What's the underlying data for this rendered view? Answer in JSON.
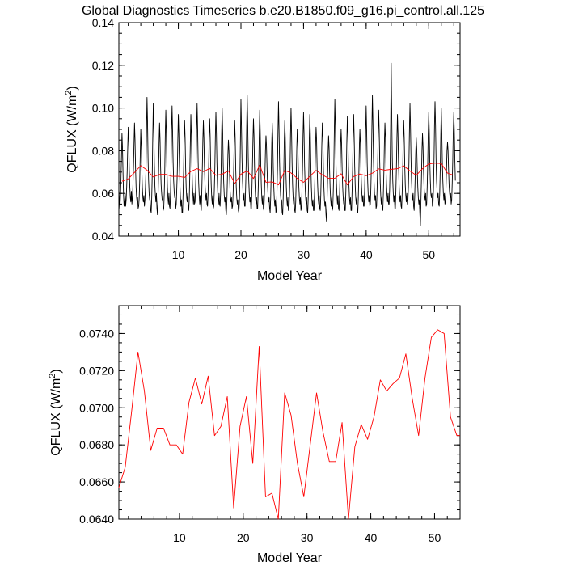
{
  "title": "Global Diagnostics Timeseries b.e20.B1850.f09_g16.pi_control.all.125",
  "colors": {
    "monthly": "#000000",
    "annual": "#ff0000",
    "axis": "#000000"
  },
  "charts": [
    {
      "id": "top",
      "xlabel": "Model Year",
      "ylabel_main": "QFLUX (W/m",
      "ylabel_sup": "2",
      "ylabel_close": ")",
      "xticks": [
        "10",
        "20",
        "30",
        "40",
        "50"
      ],
      "yticks": [
        "0.04",
        "0.06",
        "0.08",
        "0.10",
        "0.12",
        "0.14"
      ]
    },
    {
      "id": "bottom",
      "xlabel": "Model Year",
      "ylabel_main": "QFLUX (W/m",
      "ylabel_sup": "2",
      "ylabel_close": ")",
      "xticks": [
        "10",
        "20",
        "30",
        "40",
        "50"
      ],
      "yticks": [
        "0.0640",
        "0.0660",
        "0.0680",
        "0.0700",
        "0.0720",
        "0.0740"
      ]
    }
  ],
  "chart_data": [
    {
      "type": "line",
      "xlim": [
        0.5,
        55.0
      ],
      "ylim": [
        0.04,
        0.14
      ],
      "xticks": [
        10,
        20,
        30,
        40,
        50
      ],
      "yticks": [
        0.04,
        0.06,
        0.08,
        0.1,
        0.12,
        0.14
      ],
      "minor_x_step": 2,
      "minor_y_step": 0.005,
      "series": [
        {
          "color": "#000000",
          "start_x": 0.5,
          "step": 0.08333,
          "values": [
            0.062,
            0.057,
            0.053,
            0.058,
            0.066,
            0.077,
            0.088,
            0.081,
            0.069,
            0.059,
            0.054,
            0.056,
            0.06,
            0.054,
            0.057,
            0.063,
            0.071,
            0.082,
            0.091,
            0.084,
            0.071,
            0.063,
            0.058,
            0.056,
            0.061,
            0.055,
            0.058,
            0.064,
            0.072,
            0.083,
            0.093,
            0.085,
            0.072,
            0.063,
            0.058,
            0.056,
            0.058,
            0.053,
            0.054,
            0.058,
            0.066,
            0.078,
            0.09,
            0.082,
            0.071,
            0.063,
            0.058,
            0.056,
            0.059,
            0.054,
            0.057,
            0.063,
            0.071,
            0.089,
            0.105,
            0.093,
            0.076,
            0.066,
            0.06,
            0.057,
            0.057,
            0.052,
            0.051,
            0.058,
            0.069,
            0.087,
            0.102,
            0.089,
            0.074,
            0.064,
            0.059,
            0.056,
            0.06,
            0.053,
            0.05,
            0.057,
            0.068,
            0.083,
            0.093,
            0.085,
            0.072,
            0.064,
            0.06,
            0.057,
            0.057,
            0.052,
            0.053,
            0.06,
            0.071,
            0.088,
            0.099,
            0.088,
            0.073,
            0.063,
            0.058,
            0.055,
            0.06,
            0.054,
            0.053,
            0.06,
            0.072,
            0.09,
            0.101,
            0.089,
            0.075,
            0.066,
            0.061,
            0.058,
            0.058,
            0.053,
            0.055,
            0.062,
            0.07,
            0.085,
            0.097,
            0.088,
            0.074,
            0.064,
            0.058,
            0.054,
            0.057,
            0.051,
            0.051,
            0.059,
            0.07,
            0.085,
            0.094,
            0.086,
            0.072,
            0.063,
            0.058,
            0.056,
            0.06,
            0.054,
            0.052,
            0.058,
            0.069,
            0.084,
            0.097,
            0.087,
            0.073,
            0.064,
            0.059,
            0.055,
            0.06,
            0.055,
            0.056,
            0.062,
            0.072,
            0.09,
            0.102,
            0.09,
            0.075,
            0.065,
            0.059,
            0.055,
            0.059,
            0.054,
            0.052,
            0.061,
            0.072,
            0.085,
            0.094,
            0.086,
            0.073,
            0.065,
            0.06,
            0.057,
            0.06,
            0.055,
            0.054,
            0.06,
            0.071,
            0.086,
            0.095,
            0.087,
            0.073,
            0.064,
            0.058,
            0.055,
            0.059,
            0.053,
            0.054,
            0.062,
            0.072,
            0.087,
            0.098,
            0.088,
            0.074,
            0.064,
            0.058,
            0.055,
            0.06,
            0.055,
            0.054,
            0.06,
            0.071,
            0.088,
            0.1,
            0.089,
            0.074,
            0.065,
            0.059,
            0.056,
            0.058,
            0.052,
            0.05,
            0.056,
            0.066,
            0.078,
            0.085,
            0.08,
            0.07,
            0.062,
            0.058,
            0.056,
            0.058,
            0.053,
            0.054,
            0.06,
            0.07,
            0.083,
            0.094,
            0.086,
            0.072,
            0.063,
            0.058,
            0.055,
            0.057,
            0.052,
            0.051,
            0.056,
            0.067,
            0.085,
            0.104,
            0.091,
            0.076,
            0.066,
            0.06,
            0.057,
            0.06,
            0.054,
            0.054,
            0.063,
            0.074,
            0.091,
            0.106,
            0.093,
            0.077,
            0.066,
            0.06,
            0.056,
            0.058,
            0.053,
            0.053,
            0.061,
            0.072,
            0.085,
            0.095,
            0.087,
            0.073,
            0.064,
            0.058,
            0.055,
            0.058,
            0.053,
            0.053,
            0.061,
            0.071,
            0.086,
            0.099,
            0.089,
            0.074,
            0.064,
            0.058,
            0.055,
            0.059,
            0.053,
            0.052,
            0.059,
            0.069,
            0.08,
            0.087,
            0.082,
            0.072,
            0.064,
            0.059,
            0.056,
            0.058,
            0.053,
            0.051,
            0.058,
            0.069,
            0.083,
            0.093,
            0.086,
            0.072,
            0.063,
            0.057,
            0.054,
            0.057,
            0.051,
            0.052,
            0.06,
            0.071,
            0.089,
            0.103,
            0.09,
            0.075,
            0.065,
            0.059,
            0.056,
            0.057,
            0.051,
            0.05,
            0.058,
            0.069,
            0.084,
            0.094,
            0.086,
            0.072,
            0.063,
            0.057,
            0.054,
            0.058,
            0.052,
            0.052,
            0.059,
            0.07,
            0.087,
            0.1,
            0.089,
            0.074,
            0.064,
            0.058,
            0.055,
            0.058,
            0.052,
            0.051,
            0.056,
            0.067,
            0.081,
            0.09,
            0.083,
            0.071,
            0.063,
            0.058,
            0.055,
            0.058,
            0.052,
            0.053,
            0.061,
            0.071,
            0.087,
            0.098,
            0.088,
            0.073,
            0.064,
            0.058,
            0.055,
            0.058,
            0.052,
            0.051,
            0.058,
            0.069,
            0.085,
            0.097,
            0.088,
            0.073,
            0.063,
            0.057,
            0.054,
            0.057,
            0.052,
            0.052,
            0.06,
            0.07,
            0.082,
            0.091,
            0.085,
            0.072,
            0.064,
            0.058,
            0.055,
            0.059,
            0.053,
            0.052,
            0.059,
            0.07,
            0.083,
            0.093,
            0.086,
            0.072,
            0.063,
            0.057,
            0.054,
            0.056,
            0.05,
            0.047,
            0.056,
            0.066,
            0.079,
            0.087,
            0.081,
            0.07,
            0.062,
            0.057,
            0.054,
            0.058,
            0.052,
            0.053,
            0.061,
            0.072,
            0.09,
            0.104,
            0.091,
            0.076,
            0.065,
            0.059,
            0.055,
            0.059,
            0.053,
            0.052,
            0.059,
            0.069,
            0.082,
            0.09,
            0.083,
            0.071,
            0.063,
            0.058,
            0.055,
            0.058,
            0.052,
            0.052,
            0.06,
            0.07,
            0.085,
            0.096,
            0.087,
            0.073,
            0.064,
            0.058,
            0.055,
            0.058,
            0.052,
            0.052,
            0.061,
            0.071,
            0.086,
            0.097,
            0.087,
            0.073,
            0.064,
            0.058,
            0.055,
            0.058,
            0.052,
            0.051,
            0.058,
            0.069,
            0.082,
            0.09,
            0.083,
            0.071,
            0.064,
            0.059,
            0.056,
            0.059,
            0.054,
            0.054,
            0.061,
            0.072,
            0.088,
            0.101,
            0.089,
            0.074,
            0.065,
            0.059,
            0.056,
            0.059,
            0.054,
            0.055,
            0.062,
            0.073,
            0.091,
            0.106,
            0.093,
            0.077,
            0.066,
            0.06,
            0.057,
            0.059,
            0.053,
            0.054,
            0.062,
            0.073,
            0.087,
            0.099,
            0.09,
            0.075,
            0.065,
            0.059,
            0.055,
            0.058,
            0.053,
            0.052,
            0.06,
            0.07,
            0.084,
            0.093,
            0.086,
            0.072,
            0.064,
            0.059,
            0.056,
            0.06,
            0.055,
            0.055,
            0.062,
            0.073,
            0.093,
            0.121,
            0.098,
            0.078,
            0.066,
            0.06,
            0.056,
            0.059,
            0.053,
            0.053,
            0.061,
            0.072,
            0.086,
            0.097,
            0.088,
            0.074,
            0.065,
            0.059,
            0.056,
            0.059,
            0.054,
            0.053,
            0.06,
            0.07,
            0.085,
            0.094,
            0.086,
            0.073,
            0.064,
            0.059,
            0.056,
            0.06,
            0.055,
            0.056,
            0.063,
            0.074,
            0.09,
            0.102,
            0.091,
            0.076,
            0.066,
            0.06,
            0.057,
            0.06,
            0.054,
            0.052,
            0.058,
            0.068,
            0.079,
            0.086,
            0.081,
            0.071,
            0.063,
            0.058,
            0.055,
            0.057,
            0.05,
            0.045,
            0.056,
            0.067,
            0.08,
            0.088,
            0.082,
            0.071,
            0.063,
            0.059,
            0.057,
            0.06,
            0.054,
            0.055,
            0.063,
            0.074,
            0.088,
            0.098,
            0.089,
            0.075,
            0.066,
            0.06,
            0.058,
            0.06,
            0.054,
            0.054,
            0.062,
            0.074,
            0.092,
            0.103,
            0.092,
            0.076,
            0.066,
            0.061,
            0.058,
            0.06,
            0.055,
            0.054,
            0.06,
            0.071,
            0.087,
            0.1,
            0.089,
            0.075,
            0.066,
            0.06,
            0.057,
            0.06,
            0.055,
            0.056,
            0.062,
            0.071,
            0.08,
            0.084,
            0.08,
            0.071,
            0.064,
            0.06,
            0.058,
            0.06,
            0.055,
            0.057,
            0.065,
            0.076,
            0.089,
            0.098,
            0.089,
            0.076,
            0.066
          ]
        },
        {
          "color": "#ff0000",
          "x": [
            1,
            2,
            3,
            4,
            5,
            6,
            7,
            8,
            9,
            10,
            11,
            12,
            13,
            14,
            15,
            16,
            17,
            18,
            19,
            20,
            21,
            22,
            23,
            24,
            25,
            26,
            27,
            28,
            29,
            30,
            31,
            32,
            33,
            34,
            35,
            36,
            37,
            38,
            39,
            40,
            41,
            42,
            43,
            44,
            45,
            46,
            47,
            48,
            49,
            50,
            51,
            52,
            53,
            54
          ],
          "values": [
            0.0657,
            0.0668,
            0.0698,
            0.073,
            0.0709,
            0.0677,
            0.0689,
            0.0689,
            0.068,
            0.068,
            0.0675,
            0.0703,
            0.0716,
            0.0702,
            0.0717,
            0.0685,
            0.069,
            0.0706,
            0.0646,
            0.069,
            0.0706,
            0.067,
            0.0733,
            0.0652,
            0.0654,
            0.064,
            0.0708,
            0.0696,
            0.067,
            0.0652,
            0.068,
            0.0708,
            0.0687,
            0.0671,
            0.0671,
            0.0692,
            0.064,
            0.0679,
            0.0691,
            0.0683,
            0.0695,
            0.0715,
            0.0709,
            0.0713,
            0.0716,
            0.0729,
            0.0705,
            0.0685,
            0.0716,
            0.0738,
            0.0742,
            0.074,
            0.0695,
            0.0685
          ]
        }
      ]
    },
    {
      "type": "line",
      "xlim": [
        0.5,
        54.0
      ],
      "ylim": [
        0.064,
        0.0755
      ],
      "xticks": [
        10,
        20,
        30,
        40,
        50
      ],
      "yticks": [
        0.064,
        0.066,
        0.068,
        0.07,
        0.072,
        0.074
      ],
      "minor_x_step": 2,
      "minor_y_step": 0.0005,
      "series": [
        {
          "color": "#ff0000",
          "x": [
            0.5,
            1.5,
            2.5,
            3.5,
            4.5,
            5.5,
            6.5,
            7.5,
            8.5,
            9.5,
            10.5,
            11.5,
            12.5,
            13.5,
            14.5,
            15.5,
            16.5,
            17.5,
            18.5,
            19.5,
            20.5,
            21.5,
            22.5,
            23.5,
            24.5,
            25.5,
            26.5,
            27.5,
            28.5,
            29.5,
            30.5,
            31.5,
            32.5,
            33.5,
            34.5,
            35.5,
            36.5,
            37.5,
            38.5,
            39.5,
            40.5,
            41.5,
            42.5,
            43.5,
            44.5,
            45.5,
            46.5,
            47.5,
            48.5,
            49.5,
            50.5,
            51.5,
            52.5,
            53.5,
            54.0
          ],
          "values": [
            0.0657,
            0.0668,
            0.0698,
            0.073,
            0.0709,
            0.0677,
            0.0689,
            0.0689,
            0.068,
            0.068,
            0.0675,
            0.0703,
            0.0716,
            0.0702,
            0.0717,
            0.0685,
            0.069,
            0.0706,
            0.0646,
            0.069,
            0.0706,
            0.067,
            0.0733,
            0.0652,
            0.0654,
            0.064,
            0.0708,
            0.0696,
            0.067,
            0.0652,
            0.068,
            0.0708,
            0.0687,
            0.0671,
            0.0671,
            0.0692,
            0.064,
            0.0679,
            0.0691,
            0.0683,
            0.0695,
            0.0715,
            0.0709,
            0.0713,
            0.0716,
            0.0729,
            0.0705,
            0.0685,
            0.0716,
            0.0738,
            0.0742,
            0.074,
            0.0695,
            0.0685,
            0.0685
          ]
        }
      ]
    }
  ]
}
